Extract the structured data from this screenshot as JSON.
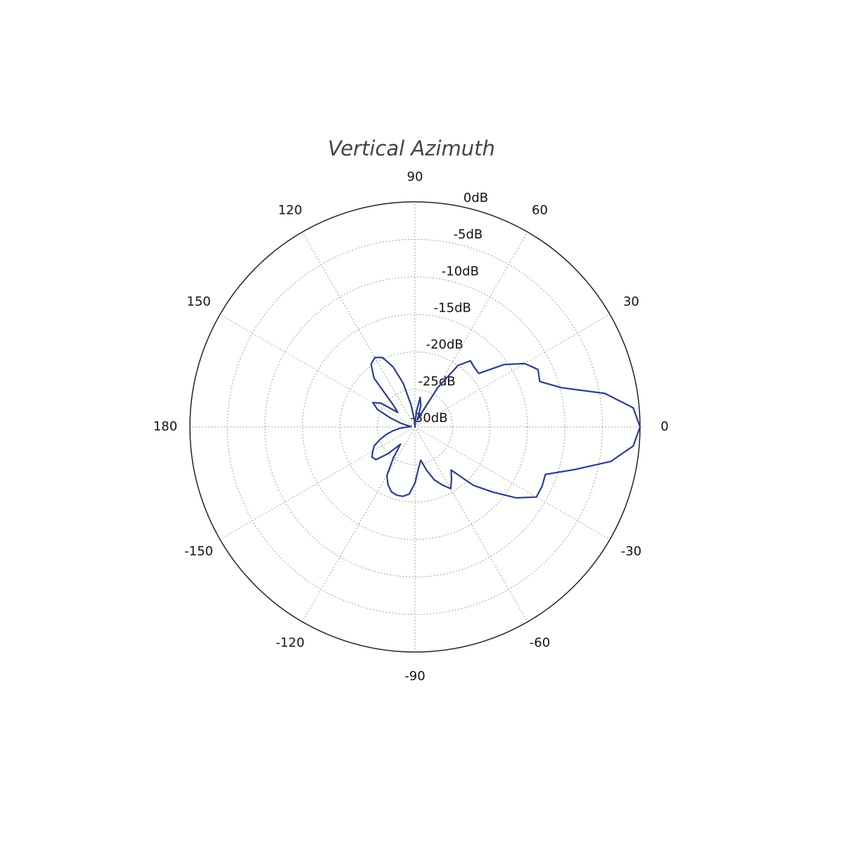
{
  "chart_data": {
    "type": "polar",
    "title": "Vertical Azimuth",
    "theta": [
      -180,
      -175,
      -170,
      -165,
      -160,
      -155,
      -150,
      -145,
      -140,
      -135,
      -130,
      -125,
      -120,
      -115,
      -110,
      -105,
      -100,
      -95,
      -90,
      -85,
      -80,
      -75,
      -70,
      -65,
      -60,
      -55,
      -50,
      -45,
      -40,
      -35,
      -30,
      -25,
      -20,
      -15,
      -10,
      -5,
      0,
      5,
      10,
      15,
      20,
      25,
      30,
      35,
      40,
      45,
      50,
      55,
      60,
      65,
      70,
      75,
      80,
      85,
      90,
      95,
      100,
      105,
      110,
      115,
      120,
      125,
      130,
      135,
      140,
      145,
      150,
      155,
      160,
      165,
      170,
      175
    ],
    "r": [
      -29,
      -28,
      -27,
      -26,
      -25,
      -24,
      -23.5,
      -23,
      -23.2,
      -25,
      -27,
      -25,
      -22.5,
      -21.5,
      -20.8,
      -20.6,
      -20.6,
      -21,
      -22.5,
      -24.5,
      -25.5,
      -24,
      -22.5,
      -21.5,
      -20.5,
      -21.5,
      -22.5,
      -19,
      -16.5,
      -13.5,
      -11.3,
      -11.3,
      -11.5,
      -8,
      -3.5,
      -0.8,
      0,
      -0.8,
      -4.3,
      -9.8,
      -12.3,
      -11.9,
      -13.1,
      -15.5,
      -18.9,
      -18.8,
      -18.5,
      -20,
      -24,
      -28,
      -29,
      -27,
      -26,
      -28,
      -30,
      -29,
      -27,
      -24,
      -21.5,
      -19.8,
      -19.3,
      -19.8,
      -21.5,
      -26,
      -27,
      -24.5,
      -23.5,
      -24.5,
      -26.5,
      -28,
      -29,
      -29.5
    ],
    "color": "#2b3d8f",
    "rlim": [
      -30,
      0
    ],
    "rticks": [
      {
        "value": 0,
        "label": "0dB"
      },
      {
        "value": -5,
        "label": "-5dB"
      },
      {
        "value": -10,
        "label": "-10dB"
      },
      {
        "value": -15,
        "label": "-15dB"
      },
      {
        "value": -20,
        "label": "-20dB"
      },
      {
        "value": -25,
        "label": "-25dB"
      },
      {
        "value": -30,
        "label": "-30dB"
      }
    ],
    "thetaticks": [
      0,
      30,
      60,
      90,
      120,
      150,
      180,
      -150,
      -120,
      -90,
      -60,
      -30
    ],
    "grid": true
  }
}
